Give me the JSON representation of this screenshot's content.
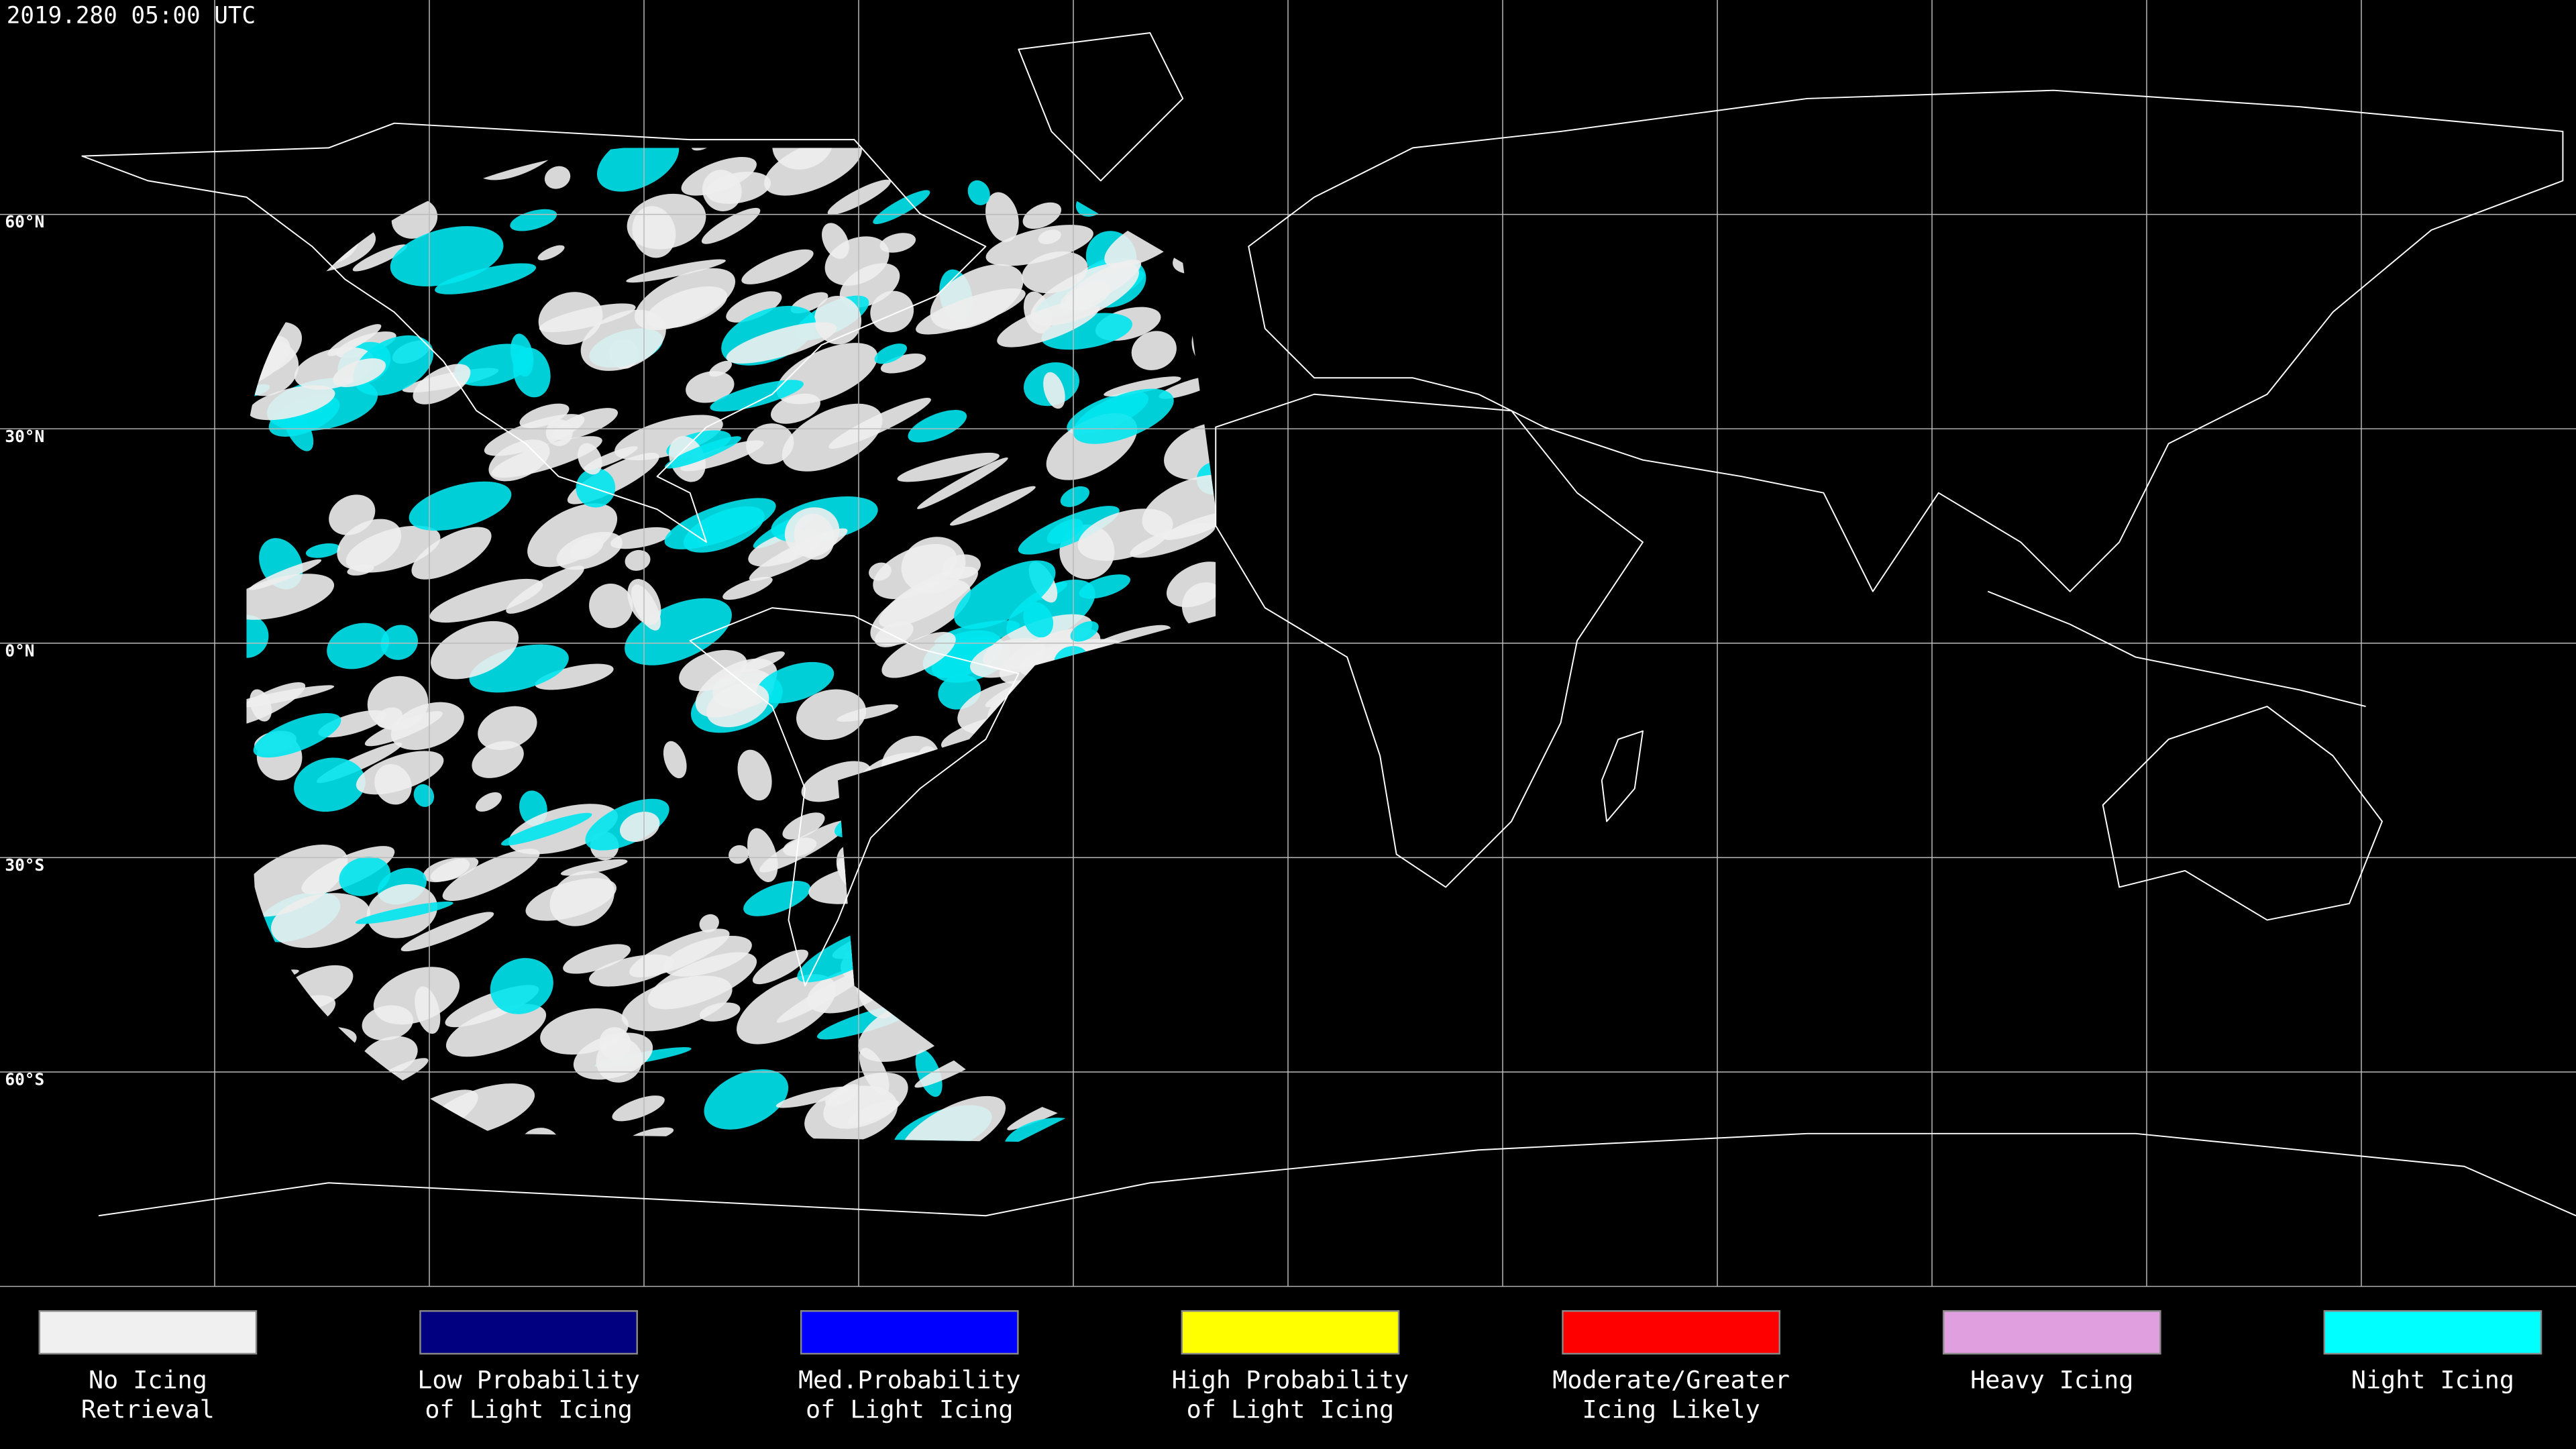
{
  "header": {
    "title": "2019.280 05:00 UTC"
  },
  "latitude_labels": [
    "60°N",
    "30°N",
    "0°N",
    "30°S",
    "60°S"
  ],
  "legend": [
    {
      "lines": [
        "No Icing",
        "Retrieval"
      ],
      "color": "#f0f0f0"
    },
    {
      "lines": [
        "Low Probability",
        "of Light Icing"
      ],
      "color": "#000080"
    },
    {
      "lines": [
        "Med.Probability",
        "of Light Icing"
      ],
      "color": "#0000ff"
    },
    {
      "lines": [
        "High Probability",
        "of Light Icing"
      ],
      "color": "#ffff00"
    },
    {
      "lines": [
        "Moderate/Greater",
        "Icing Likely"
      ],
      "color": "#ff0000"
    },
    {
      "lines": [
        "Heavy Icing"
      ],
      "color": "#e0a0e0"
    },
    {
      "lines": [
        "Night Icing"
      ],
      "color": "#00ffff"
    }
  ]
}
